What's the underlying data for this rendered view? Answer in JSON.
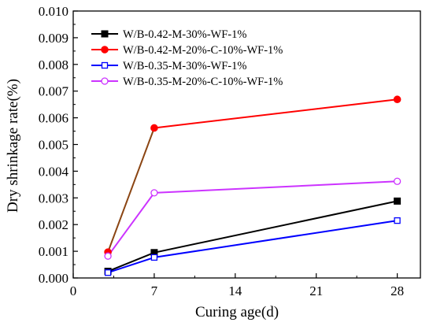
{
  "chart_data": {
    "type": "line",
    "xlabel": "Curing age(d)",
    "ylabel": "Dry shrinkage rate(%)",
    "xlim": [
      0,
      30
    ],
    "ylim": [
      0,
      0.01
    ],
    "xticks": [
      0,
      7,
      14,
      21,
      28
    ],
    "xtick_labels": [
      "0",
      "7",
      "14",
      "21",
      "28"
    ],
    "yticks": [
      0,
      0.001,
      0.002,
      0.003,
      0.004,
      0.005,
      0.006,
      0.007,
      0.008,
      0.009,
      0.01
    ],
    "ytick_labels": [
      "0.000",
      "0.001",
      "0.002",
      "0.003",
      "0.004",
      "0.005",
      "0.006",
      "0.007",
      "0.008",
      "0.009",
      "0.010"
    ],
    "grid": false,
    "legend_position": "top-left",
    "series": [
      {
        "name": "W/B-0.42-M-30%-WF-1%",
        "color": "#000000",
        "marker": "filled-square",
        "x": [
          3,
          7,
          28
        ],
        "y": [
          0.00025,
          0.00095,
          0.00288
        ]
      },
      {
        "name": "W/B-0.42-M-20%-C-10%-WF-1%",
        "color": "#ff0000",
        "segment_colors": [
          "#8b4513",
          "#ff0000"
        ],
        "marker": "filled-circle",
        "x": [
          3,
          7,
          28
        ],
        "y": [
          0.00097,
          0.00562,
          0.00669
        ]
      },
      {
        "name": "W/B-0.35-M-30%-WF-1%",
        "color": "#0000ff",
        "marker": "open-square",
        "x": [
          3,
          7,
          28
        ],
        "y": [
          0.0002,
          0.00077,
          0.00215
        ]
      },
      {
        "name": "W/B-0.35-M-20%-C-10%-WF-1%",
        "color": "#cc33ff",
        "marker": "open-circle",
        "x": [
          3,
          7,
          28
        ],
        "y": [
          0.00082,
          0.00319,
          0.00362
        ]
      }
    ]
  }
}
